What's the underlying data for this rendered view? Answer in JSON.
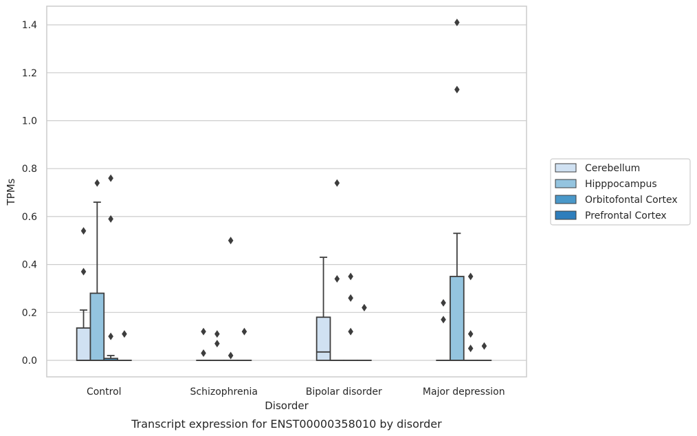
{
  "chart_data": {
    "type": "box",
    "caption": "Transcript expression for ENST00000358010 by disorder",
    "xlabel": "Disorder",
    "ylabel": "TPMs",
    "ylim": [
      -0.07,
      1.48
    ],
    "yticks": [
      "0.0",
      "0.2",
      "0.4",
      "0.6",
      "0.8",
      "1.0",
      "1.2",
      "1.4"
    ],
    "grid": true,
    "legend_position": "right",
    "categories": [
      "Control",
      "Schizophrenia",
      "Bipolar disorder",
      "Major depression"
    ],
    "series": [
      {
        "name": "Cerebellum",
        "color": "#d0e1f2",
        "boxes": [
          {
            "q1": 0,
            "median": 0,
            "q3": 0.135,
            "whisker_low": 0,
            "whisker_high": 0.21,
            "outliers": [
              0.54,
              0.37
            ]
          },
          {
            "q1": 0,
            "median": 0,
            "q3": 0,
            "whisker_low": 0,
            "whisker_high": 0,
            "outliers": [
              0.12,
              0.03
            ]
          },
          {
            "q1": 0,
            "median": 0.035,
            "q3": 0.18,
            "whisker_low": 0,
            "whisker_high": 0.43,
            "outliers": []
          },
          {
            "q1": 0,
            "median": 0,
            "q3": 0,
            "whisker_low": 0,
            "whisker_high": 0,
            "outliers": [
              0.24,
              0.17
            ]
          }
        ]
      },
      {
        "name": "Hipppocampus",
        "color": "#94c4df",
        "boxes": [
          {
            "q1": 0,
            "median": 0,
            "q3": 0.28,
            "whisker_low": 0,
            "whisker_high": 0.66,
            "outliers": [
              0.74
            ]
          },
          {
            "q1": 0,
            "median": 0,
            "q3": 0,
            "whisker_low": 0,
            "whisker_high": 0,
            "outliers": [
              0.11,
              0.07
            ]
          },
          {
            "q1": 0,
            "median": 0,
            "q3": 0,
            "whisker_low": 0,
            "whisker_high": 0,
            "outliers": [
              0.74,
              0.34
            ]
          },
          {
            "q1": 0,
            "median": 0,
            "q3": 0.35,
            "whisker_low": 0,
            "whisker_high": 0.53,
            "outliers": [
              1.41,
              1.13
            ]
          }
        ]
      },
      {
        "name": "Orbitofontal Cortex",
        "color": "#4a98c9",
        "boxes": [
          {
            "q1": 0,
            "median": 0,
            "q3": 0.008,
            "whisker_low": 0,
            "whisker_high": 0.02,
            "outliers": [
              0.76,
              0.59,
              0.1
            ]
          },
          {
            "q1": 0,
            "median": 0,
            "q3": 0,
            "whisker_low": 0,
            "whisker_high": 0,
            "outliers": [
              0.5,
              0.02
            ]
          },
          {
            "q1": 0,
            "median": 0,
            "q3": 0,
            "whisker_low": 0,
            "whisker_high": 0,
            "outliers": [
              0.35,
              0.26,
              0.12
            ]
          },
          {
            "q1": 0,
            "median": 0,
            "q3": 0,
            "whisker_low": 0,
            "whisker_high": 0,
            "outliers": [
              0.35,
              0.11,
              0.05
            ]
          }
        ]
      },
      {
        "name": "Prefrontal Cortex",
        "color": "#2e7ebc",
        "boxes": [
          {
            "q1": 0,
            "median": 0,
            "q3": 0,
            "whisker_low": 0,
            "whisker_high": 0,
            "outliers": [
              0.11
            ]
          },
          {
            "q1": 0,
            "median": 0,
            "q3": 0,
            "whisker_low": 0,
            "whisker_high": 0,
            "outliers": [
              0.12
            ]
          },
          {
            "q1": 0,
            "median": 0,
            "q3": 0,
            "whisker_low": 0,
            "whisker_high": 0,
            "outliers": [
              0.22
            ]
          },
          {
            "q1": 0,
            "median": 0,
            "q3": 0,
            "whisker_low": 0,
            "whisker_high": 0,
            "outliers": [
              0.06
            ]
          }
        ]
      }
    ]
  }
}
